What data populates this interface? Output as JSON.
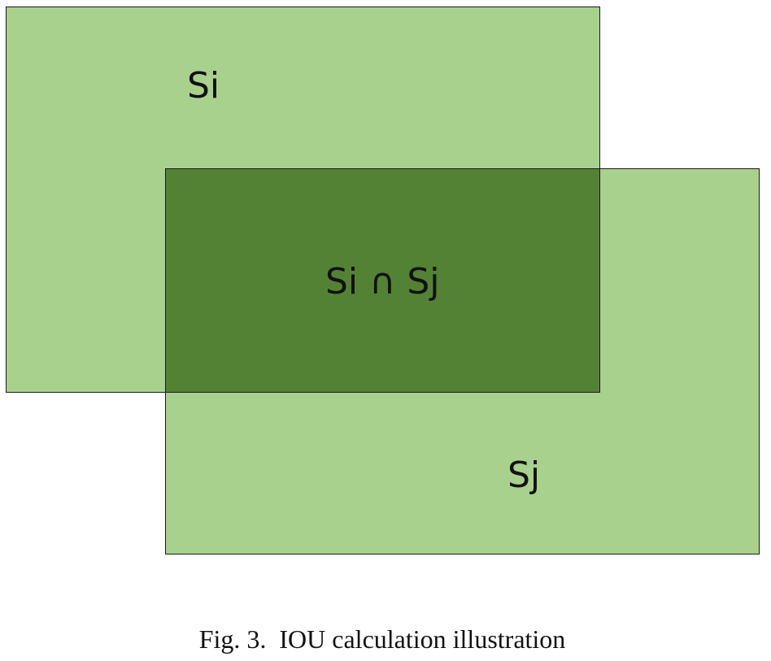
{
  "diagram": {
    "region_si": {
      "label": "Si",
      "fill": "#a9d18e"
    },
    "region_sj": {
      "label": "Sj",
      "fill": "#a9d18e"
    },
    "intersection": {
      "label": "Si ∩ Sj",
      "fill": "#548235"
    },
    "border_color": "#1a1a1a"
  },
  "caption": "Fig. 3.  IOU calculation illustration"
}
